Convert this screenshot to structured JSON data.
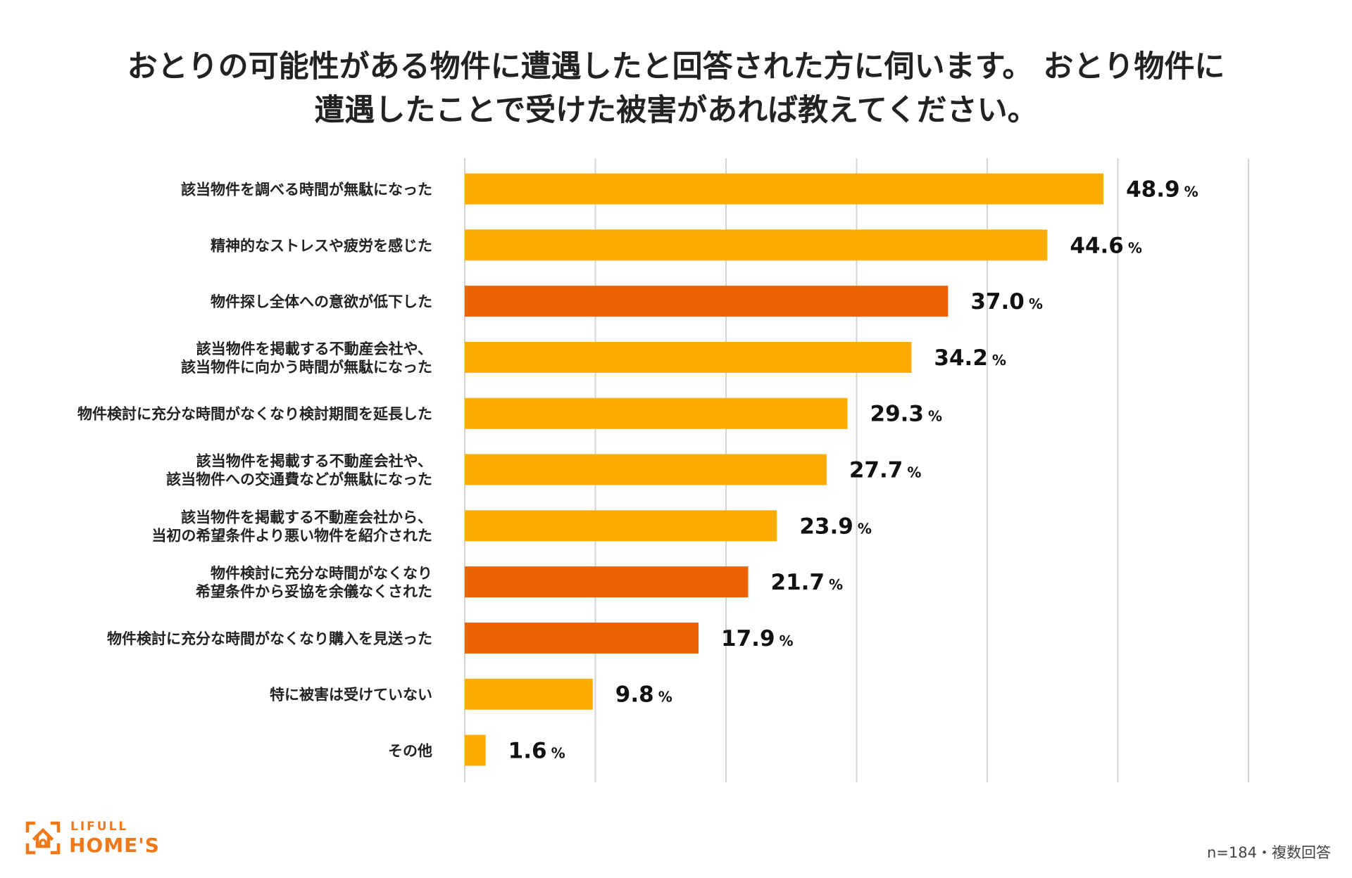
{
  "chart_data": {
    "type": "bar",
    "orientation": "horizontal",
    "title_lines": [
      "おとりの可能性がある物件に遭遇したと回答された方に伺います。 おとり物件に",
      "遭遇したことで受けた被害があれば教えてください。"
    ],
    "unit": "%",
    "xlim": [
      0,
      60
    ],
    "grid": true,
    "categories": [
      [
        "該当物件を調べる時間が無駄になった"
      ],
      [
        "精神的なストレスや疲労を感じた"
      ],
      [
        "物件探し全体への意欲が低下した"
      ],
      [
        "該当物件を掲載する不動産会社や、",
        "該当物件に向かう時間が無駄になった"
      ],
      [
        "物件検討に充分な時間がなくなり検討期間を延長した"
      ],
      [
        "該当物件を掲載する不動産会社や、",
        "該当物件への交通費などが無駄になった"
      ],
      [
        "該当物件を掲載する不動産会社から、",
        "当初の希望条件より悪い物件を紹介された"
      ],
      [
        "物件検討に充分な時間がなくなり",
        "希望条件から妥協を余儀なくされた"
      ],
      [
        "物件検討に充分な時間がなくなり購入を見送った"
      ],
      [
        "特に被害は受けていない"
      ],
      [
        "その他"
      ]
    ],
    "values": [
      48.9,
      44.6,
      37.0,
      34.2,
      29.3,
      27.7,
      23.9,
      21.7,
      17.9,
      9.8,
      1.6
    ],
    "value_labels": [
      "48.9",
      "44.6",
      "37.0",
      "34.2",
      "29.3",
      "27.7",
      "23.9",
      "21.7",
      "17.9",
      "9.8",
      "1.6"
    ],
    "bar_colors": [
      "#fcab00",
      "#fcab00",
      "#ec6402",
      "#fcab00",
      "#fcab00",
      "#fcab00",
      "#fcab00",
      "#ec6402",
      "#ec6402",
      "#fcab00",
      "#fcab00"
    ],
    "colors": {
      "default_bar": "#fcab00",
      "highlight_bar": "#ec6402",
      "grid": "#d4d4d4"
    }
  },
  "logo": {
    "brand": "LIFULL",
    "product": "HOME'S",
    "color": "#f07818",
    "icon": "house-icon"
  },
  "footnote": "n=184・複数回答"
}
